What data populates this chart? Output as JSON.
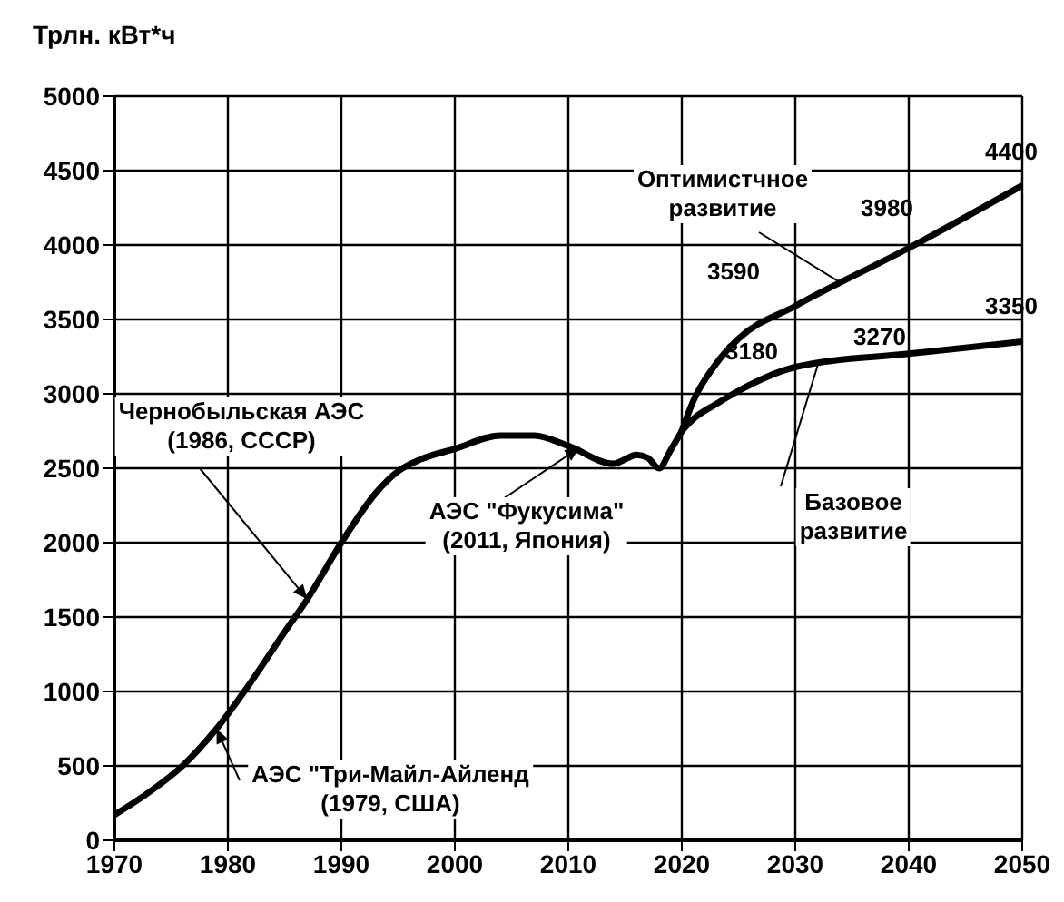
{
  "chart_data": {
    "type": "line",
    "ylabel": "Трлн. кВт*ч",
    "xlim": [
      1970,
      2050
    ],
    "xticks": [
      1970,
      1980,
      1990,
      2000,
      2010,
      2020,
      2030,
      2040,
      2050
    ],
    "ylim": [
      0,
      5000
    ],
    "yticks": [
      0,
      500,
      1000,
      1500,
      2000,
      2500,
      3000,
      3500,
      4000,
      4500,
      5000
    ],
    "grid": true,
    "legend": false,
    "marker": "none",
    "line_style": "solid",
    "series": [
      {
        "color": "#000000",
        "x": [
          1970,
          1973,
          1976,
          1979,
          1982,
          1985,
          1987,
          1990,
          1993,
          1995,
          1997,
          2000,
          2004,
          2007,
          2010,
          2014,
          2015,
          2016,
          2017,
          2018,
          2019,
          2020
        ],
        "values": [
          170,
          320,
          500,
          750,
          1060,
          1400,
          1620,
          2000,
          2330,
          2480,
          2560,
          2630,
          2720,
          2720,
          2650,
          2530,
          2560,
          2590,
          2570,
          2500,
          2620,
          2750
        ]
      },
      {
        "name": "Оптимистчное развитие",
        "color": "#000000",
        "x": [
          2020,
          2021,
          2023,
          2025,
          2030,
          2040,
          2050
        ],
        "values": [
          2750,
          2950,
          3200,
          3370,
          3590,
          3980,
          4400
        ],
        "value_labels": [
          null,
          null,
          null,
          null,
          "3590",
          "3980",
          "4400"
        ]
      },
      {
        "name": "Базовое развитие",
        "color": "#000000",
        "x": [
          2020,
          2021,
          2023,
          2025,
          2030,
          2040,
          2050
        ],
        "values": [
          2750,
          2830,
          2930,
          3020,
          3180,
          3270,
          3350
        ],
        "value_labels": [
          null,
          null,
          null,
          null,
          "3180",
          "3270",
          "3350"
        ]
      }
    ],
    "annotations": [
      {
        "text": "Чернобыльская АЭС\n(1986, СССР)",
        "x": 1987,
        "y": 1620
      },
      {
        "text": "АЭС \"Фукусима\"\n(2011, Япония)",
        "x": 2011,
        "y": 2640
      },
      {
        "text": "АЭС \"Три-Майл-Айленд\n(1979, США)",
        "x": 1979,
        "y": 750
      }
    ]
  }
}
